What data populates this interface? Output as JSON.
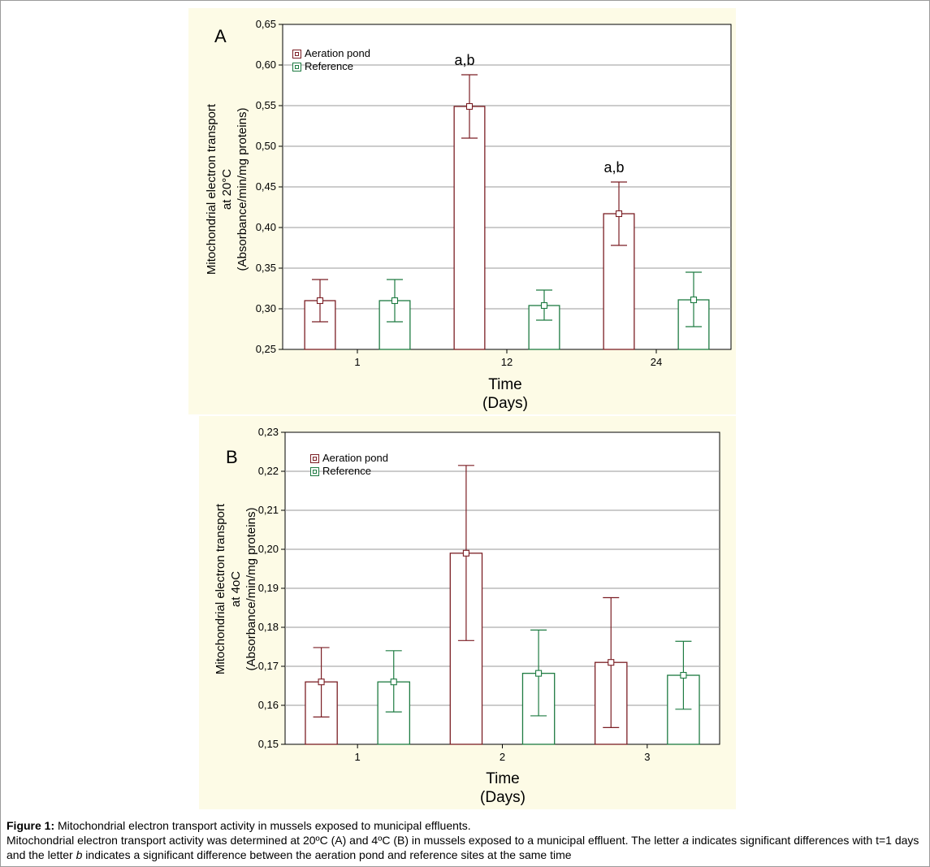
{
  "chart_data": [
    {
      "type": "bar",
      "panel_label": "A",
      "categories": [
        "1",
        "12",
        "24"
      ],
      "xlabel": [
        "Time",
        "(Days)"
      ],
      "ylabel": [
        "Mitochondrial electron transport",
        "at 20°C",
        "(Absorbance/min/mg proteins)"
      ],
      "ylim": [
        0.25,
        0.65
      ],
      "yticks": [
        "0,25",
        "0,30",
        "0,35",
        "0,40",
        "0,45",
        "0,50",
        "0,55",
        "0,60",
        "0,65"
      ],
      "yticks_values": [
        0.25,
        0.3,
        0.35,
        0.4,
        0.45,
        0.5,
        0.55,
        0.6,
        0.65
      ],
      "grid": true,
      "legend_position": "top-left",
      "series": [
        {
          "name": "Aeration pond",
          "color": "#7b1e24",
          "values": [
            0.31,
            0.549,
            0.417
          ],
          "err_low": [
            0.284,
            0.51,
            0.378
          ],
          "err_high": [
            0.336,
            0.588,
            0.456
          ]
        },
        {
          "name": "Reference",
          "color": "#1e7b42",
          "values": [
            0.31,
            0.304,
            0.311
          ],
          "err_low": [
            0.284,
            0.286,
            0.278
          ],
          "err_high": [
            0.336,
            0.323,
            0.345
          ]
        }
      ],
      "annotations": [
        {
          "text": "a,b",
          "category_index": 1,
          "series_index": 0
        },
        {
          "text": "a,b",
          "category_index": 2,
          "series_index": 0
        }
      ]
    },
    {
      "type": "bar",
      "panel_label": "B",
      "categories": [
        "1",
        "2",
        "3"
      ],
      "xlabel": [
        "Time",
        "(Days)"
      ],
      "ylabel": [
        "Mitochondrial electron transport",
        "at 4oC",
        "(Absorbance/min/mg proteins)"
      ],
      "ylim": [
        0.15,
        0.23
      ],
      "yticks": [
        "0,15",
        "0,16",
        "0,17",
        "0,18",
        "0,19",
        "0,20",
        "0,21",
        "0,22",
        "0,23"
      ],
      "yticks_values": [
        0.15,
        0.16,
        0.17,
        0.18,
        0.19,
        0.2,
        0.21,
        0.22,
        0.23
      ],
      "grid": true,
      "legend_position": "top-left",
      "series": [
        {
          "name": "Aeration pond",
          "color": "#7b1e24",
          "values": [
            0.166,
            0.199,
            0.171
          ],
          "err_low": [
            0.157,
            0.1766,
            0.1543
          ],
          "err_high": [
            0.1748,
            0.2215,
            0.1876
          ]
        },
        {
          "name": "Reference",
          "color": "#1e7b42",
          "values": [
            0.166,
            0.1682,
            0.1677
          ],
          "err_low": [
            0.1583,
            0.1573,
            0.159
          ],
          "err_high": [
            0.174,
            0.1793,
            0.1764
          ]
        }
      ],
      "annotations": []
    }
  ],
  "caption": {
    "label": "Figure 1:",
    "title": " Mitochondrial electron transport activity in mussels exposed to municipal effluents.",
    "line2_pre": "Mitochondrial electron transport activity was determined at 20ºC (A) and 4ºC (B) in mussels exposed to a municipal effluent. The letter ",
    "a": "a",
    "line2_mid": " indicates significant differences with t=1 days and the letter ",
    "b": "b",
    "line2_post": " indicates a significant difference between the aeration pond and reference sites at the same time"
  }
}
